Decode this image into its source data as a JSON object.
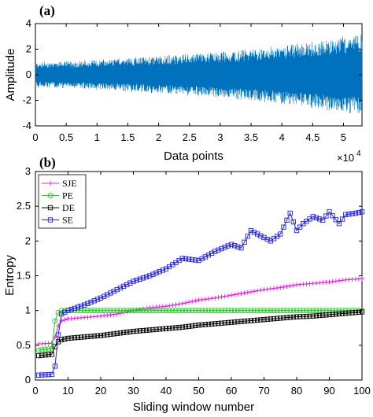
{
  "chart_data": [
    {
      "type": "line",
      "panel_label": "(a)",
      "xlabel": "Data points",
      "ylabel": "Amplitude",
      "x_exponent_base": "×10",
      "x_exponent_power": "4",
      "xlim": [
        0,
        5.3
      ],
      "ylim": [
        -4,
        4
      ],
      "xticks": [
        "0",
        "0.5",
        "1",
        "1.5",
        "2",
        "2.5",
        "3",
        "3.5",
        "4",
        "4.5",
        "5"
      ],
      "yticks": [
        "-4",
        "-2",
        "0",
        "2",
        "4"
      ],
      "series_color": "#0072BD",
      "envelope": {
        "x": [
          0,
          0.5,
          1.0,
          1.5,
          2.0,
          2.5,
          3.0,
          3.5,
          4.0,
          4.5,
          5.0,
          5.3
        ],
        "amplitude": [
          1.0,
          1.05,
          1.15,
          1.3,
          1.45,
          1.6,
          1.8,
          2.0,
          2.3,
          2.6,
          3.0,
          3.2
        ]
      },
      "grid": false
    },
    {
      "type": "line",
      "panel_label": "(b)",
      "xlabel": "Sliding window number",
      "ylabel": "Entropy",
      "xlim": [
        0,
        100
      ],
      "ylim": [
        0,
        3
      ],
      "xticks": [
        "0",
        "10",
        "20",
        "30",
        "40",
        "50",
        "60",
        "70",
        "80",
        "90",
        "100"
      ],
      "yticks": [
        "0",
        "0.5",
        "1",
        "1.5",
        "2",
        "2.5",
        "3"
      ],
      "legend_position": "top-left",
      "grid": false,
      "series": [
        {
          "name": "SJE",
          "color": "#E020E0",
          "marker": "plus",
          "x": [
            1,
            5,
            6,
            7,
            8,
            10,
            15,
            20,
            25,
            30,
            35,
            40,
            45,
            50,
            55,
            60,
            65,
            70,
            75,
            80,
            85,
            90,
            95,
            100
          ],
          "values": [
            0.52,
            0.53,
            0.62,
            0.78,
            0.85,
            0.88,
            0.9,
            0.92,
            0.95,
            1.0,
            1.04,
            1.06,
            1.1,
            1.15,
            1.18,
            1.22,
            1.26,
            1.3,
            1.33,
            1.37,
            1.39,
            1.41,
            1.44,
            1.46
          ]
        },
        {
          "name": "PE",
          "color": "#22CC22",
          "marker": "circle",
          "x": [
            1,
            5,
            6,
            7,
            8,
            10,
            20,
            30,
            40,
            50,
            60,
            70,
            80,
            90,
            100
          ],
          "values": [
            0.43,
            0.45,
            0.85,
            0.97,
            1.0,
            1.0,
            1.0,
            1.0,
            1.0,
            1.0,
            1.0,
            1.0,
            1.0,
            1.0,
            1.0
          ]
        },
        {
          "name": "DE",
          "color": "#000000",
          "marker": "square",
          "x": [
            1,
            5,
            6,
            7,
            8,
            10,
            15,
            20,
            25,
            30,
            35,
            40,
            45,
            50,
            55,
            60,
            65,
            70,
            75,
            80,
            85,
            90,
            95,
            100
          ],
          "values": [
            0.35,
            0.37,
            0.48,
            0.55,
            0.58,
            0.6,
            0.62,
            0.64,
            0.67,
            0.7,
            0.72,
            0.74,
            0.76,
            0.79,
            0.81,
            0.83,
            0.85,
            0.87,
            0.89,
            0.91,
            0.92,
            0.94,
            0.96,
            0.98
          ]
        },
        {
          "name": "SE",
          "color": "#2020DD",
          "marker": "square",
          "x": [
            1,
            5,
            6,
            7,
            8,
            10,
            15,
            20,
            25,
            30,
            35,
            40,
            45,
            50,
            55,
            60,
            63,
            66,
            70,
            72,
            75,
            78,
            80,
            82,
            85,
            88,
            90,
            93,
            95,
            98,
            100
          ],
          "values": [
            0.07,
            0.08,
            0.2,
            0.65,
            0.95,
            1.0,
            1.08,
            1.18,
            1.3,
            1.42,
            1.5,
            1.6,
            1.75,
            1.72,
            1.85,
            1.95,
            1.9,
            2.15,
            2.05,
            2.0,
            2.1,
            2.4,
            2.15,
            2.25,
            2.35,
            2.3,
            2.42,
            2.25,
            2.38,
            2.4,
            2.42
          ]
        }
      ]
    }
  ]
}
